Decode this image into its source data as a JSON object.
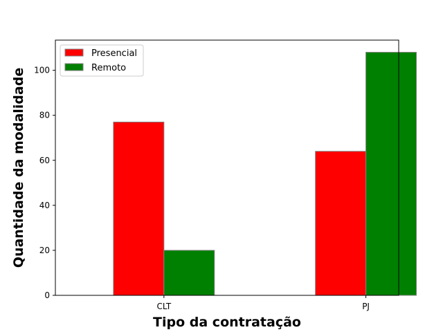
{
  "chart_data": {
    "type": "bar",
    "categories": [
      "CLT",
      "PJ"
    ],
    "series": [
      {
        "name": "Presencial",
        "values": [
          77,
          64
        ],
        "color": "#ff0000"
      },
      {
        "name": "Remoto",
        "values": [
          20,
          108
        ],
        "color": "#008000"
      }
    ],
    "xlabel": "Tipo da contratação",
    "ylabel": "Quantidade da modalidade",
    "ylim": [
      0,
      113.4
    ],
    "yticks": [
      0,
      20,
      40,
      60,
      80,
      100
    ],
    "grid": false,
    "legend_position": "top-left",
    "bar_edge_color": "#808080"
  }
}
